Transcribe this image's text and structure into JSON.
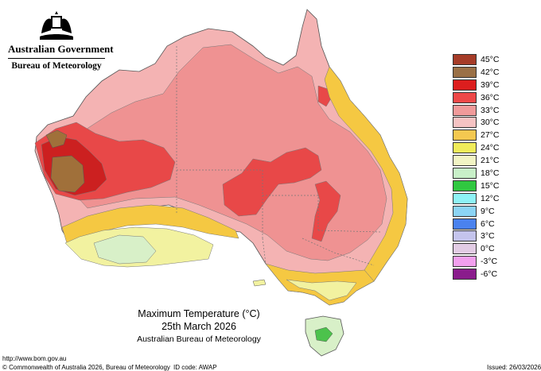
{
  "header": {
    "government": "Australian Government",
    "bureau": "Bureau of Meteorology"
  },
  "map": {
    "title": "Maximum Temperature (°C)",
    "date": "25th March 2026",
    "organisation": "Australian Bureau of Meteorology",
    "colors": {
      "ocean": "#ffffff",
      "c27": "#f5c842",
      "c24": "#f2f2a0",
      "c21": "#d8f0c8",
      "c18": "#4cc24c",
      "c30": "#f4b3b3",
      "c33": "#ef9292",
      "c36": "#e84848",
      "c39": "#cc2020",
      "c42": "#a0703a"
    }
  },
  "legend": [
    {
      "label": "45°C",
      "color": "#a63c28"
    },
    {
      "label": "42°C",
      "color": "#9a7046"
    },
    {
      "label": "39°C",
      "color": "#dc1e1e"
    },
    {
      "label": "36°C",
      "color": "#ee4848"
    },
    {
      "label": "33°C",
      "color": "#f09a9a"
    },
    {
      "label": "30°C",
      "color": "#f6c3c3"
    },
    {
      "label": "27°C",
      "color": "#f4c850"
    },
    {
      "label": "24°C",
      "color": "#f0ec5a"
    },
    {
      "label": "21°C",
      "color": "#f2f4c4"
    },
    {
      "label": "18°C",
      "color": "#c8f0c8"
    },
    {
      "label": "15°C",
      "color": "#30c840"
    },
    {
      "label": "12°C",
      "color": "#8ef2f6"
    },
    {
      "label": "9°C",
      "color": "#8cd4f4"
    },
    {
      "label": "6°C",
      "color": "#4a82ee"
    },
    {
      "label": "3°C",
      "color": "#c4c4ec"
    },
    {
      "label": "0°C",
      "color": "#e2cce4"
    },
    {
      "label": "-3°C",
      "color": "#f2a0ee"
    },
    {
      "label": "-6°C",
      "color": "#8a1c8c"
    }
  ],
  "footer": {
    "url": "http://www.bom.gov.au",
    "copyright": "© Commonwealth of Australia 2026, Bureau of Meteorology",
    "id_code": "ID code: AWAP",
    "issued": "Issued: 26/03/2026"
  }
}
